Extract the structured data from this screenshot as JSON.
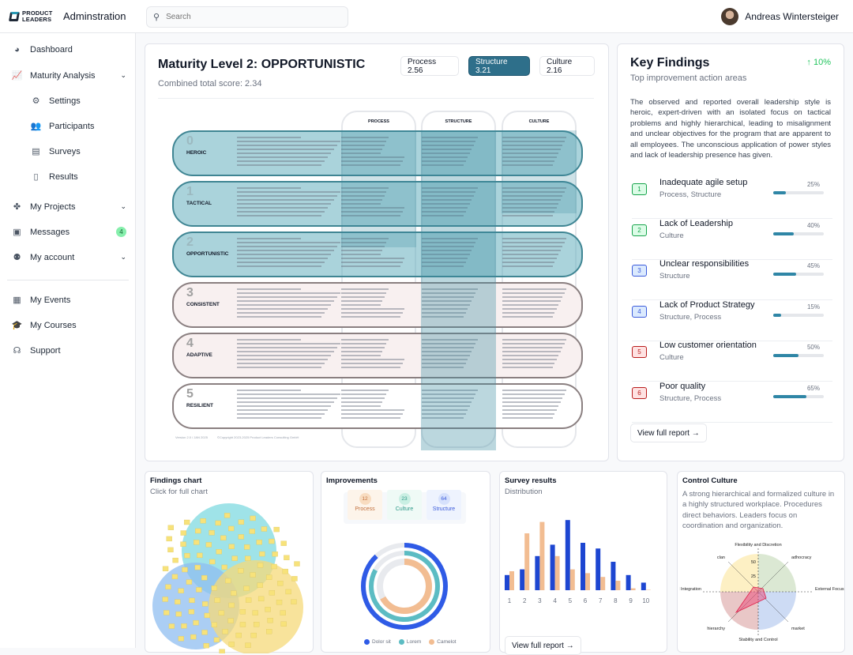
{
  "header": {
    "logo_text": "PRODUCT LEADERS",
    "app_title": "Adminstration",
    "search_placeholder": "Search",
    "user_name": "Andreas Wintersteiger"
  },
  "sidebar": {
    "items": [
      {
        "label": "Dashboard",
        "icon": "pie-chart-icon"
      },
      {
        "label": "Maturity Analysis",
        "icon": "line-chart-icon",
        "expandable": true
      },
      {
        "label": "Settings",
        "icon": "gear-icon"
      },
      {
        "label": "Participants",
        "icon": "users-icon"
      },
      {
        "label": "Surveys",
        "icon": "archive-icon"
      },
      {
        "label": "Results",
        "icon": "report-icon"
      },
      {
        "label": "My Projects",
        "icon": "projects-icon",
        "expandable": true
      },
      {
        "label": "Messages",
        "icon": "inbox-icon",
        "badge": "4"
      },
      {
        "label": "My account",
        "icon": "user-cog-icon",
        "expandable": true
      },
      {
        "label": "My Events",
        "icon": "calendar-icon"
      },
      {
        "label": "My Courses",
        "icon": "graduation-cap-icon"
      },
      {
        "label": "Support",
        "icon": "headset-icon"
      }
    ]
  },
  "maturity": {
    "title": "Maturity Level 2: OPPORTUNISTIC",
    "score": "Combined total score: 2.34",
    "tabs": [
      {
        "label": "Process 2.56"
      },
      {
        "label": "Structure 3.21",
        "active": true
      },
      {
        "label": "Culture 2.16"
      }
    ],
    "columns": [
      "PROCESS",
      "STRUCTURE",
      "CULTURE"
    ],
    "levels": [
      {
        "num": "0",
        "name": "HEROIC"
      },
      {
        "num": "1",
        "name": "TACTICAL"
      },
      {
        "num": "2",
        "name": "OPPORTUNISTIC"
      },
      {
        "num": "3",
        "name": "CONSISTENT"
      },
      {
        "num": "4",
        "name": "ADAPTIVE"
      },
      {
        "num": "5",
        "name": "RESILIENT"
      }
    ],
    "footer_version": "Version 2.0 / JAN 2025",
    "footer_copyright": "©Copyright 2023-2025 Product Leaders Consulting GmbH"
  },
  "key_findings": {
    "title": "Key Findings",
    "trend": "↑ 10%",
    "subtitle": "Top improvement action areas",
    "summary": "The observed and reported overall leadership style is heroic, expert-driven with an isolated focus on tactical problems and highly hierarchical, leading to misalignment and unclear objectives for the program that are apparent to all employees. The unconscious application of power styles and lack of leadership presence has given.",
    "items": [
      {
        "num": "1",
        "title": "Inadequate agile setup",
        "category": "Process, Structure",
        "percent": "25%",
        "value": 25,
        "color": "#dcfce7",
        "border": "#16a34a"
      },
      {
        "num": "2",
        "title": "Lack of Leadership",
        "category": "Culture",
        "percent": "40%",
        "value": 40,
        "color": "#dcfce7",
        "border": "#16a34a"
      },
      {
        "num": "3",
        "title": "Unclear responsibilities",
        "category": "Structure",
        "percent": "45%",
        "value": 45,
        "color": "#dbeafe",
        "border": "#3b5bdb"
      },
      {
        "num": "4",
        "title": "Lack of Product Strategy",
        "category": "Structure, Process",
        "percent": "15%",
        "value": 15,
        "color": "#dbeafe",
        "border": "#3b5bdb"
      },
      {
        "num": "5",
        "title": "Low customer orientation",
        "category": "Culture",
        "percent": "50%",
        "value": 50,
        "color": "#fee2e2",
        "border": "#b91c1c"
      },
      {
        "num": "6",
        "title": "Poor quality",
        "category": "Structure, Process",
        "percent": "65%",
        "value": 65,
        "color": "#fee2e2",
        "border": "#b91c1c"
      }
    ],
    "button": "View full report →"
  },
  "findings_chart": {
    "title": "Findings chart",
    "subtitle": "Click for full chart"
  },
  "improvements": {
    "title": "Improvements",
    "stats": [
      {
        "value": "12",
        "label": "Process",
        "color": "#c2703d"
      },
      {
        "value": "23",
        "label": "Culture",
        "color": "#2f9a8a"
      },
      {
        "value": "64",
        "label": "Structure",
        "color": "#3b5bdb"
      }
    ]
  },
  "survey": {
    "title": "Survey results",
    "subtitle": "Distribution",
    "button": "View full report →"
  },
  "control_culture": {
    "title": "Control Culture",
    "text": "A strong hierarchical and formalized culture in a highly structured workplace. Procedures direct behaviors. Leaders focus on coordination and organization.",
    "axes": {
      "top": "Flexibility and Discretion",
      "bottom": "Stability and Control",
      "left": "Internal Focus and Integration",
      "right": "External Focus and Differentiation"
    },
    "quadrants": [
      "clan",
      "adhocracy",
      "hierarchy",
      "market"
    ],
    "ticks": [
      "50",
      "25"
    ]
  },
  "chart_data": [
    {
      "type": "bar",
      "title": "Survey results",
      "categories": [
        "1",
        "2",
        "3",
        "4",
        "5",
        "6",
        "7",
        "8",
        "9",
        "10"
      ],
      "series": [
        {
          "values": [
            8,
            11,
            18,
            24,
            37,
            25,
            22,
            15,
            8,
            4
          ],
          "color": "#1d46d1"
        },
        {
          "values": [
            10,
            30,
            36,
            18,
            11,
            9,
            7,
            5,
            1,
            0.2
          ],
          "color": "#f2bd92"
        }
      ]
    },
    {
      "type": "pie",
      "title": "Improvements",
      "series": [
        {
          "name": "Dolor sit",
          "value": 88,
          "color": "#2f5be6"
        },
        {
          "name": "Lorem",
          "value": 83,
          "color": "#5cbcc3"
        },
        {
          "name": "Camelot",
          "value": 67,
          "color": "#f2bd92"
        }
      ],
      "max": 100
    }
  ]
}
